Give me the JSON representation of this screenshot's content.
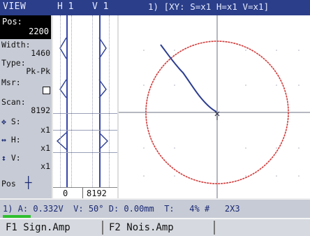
{
  "header": {
    "view": "VIEW",
    "h_label": "H 1",
    "v_label": "V 1",
    "xy_info": "1) [XY: S=x1 H=x1 V=x1]"
  },
  "panel": {
    "pos_label": "Pos:",
    "pos_value": "2200",
    "width_label": "Width:",
    "width_value": "1460",
    "type_label": "Type:",
    "type_value": "Pk-Pk",
    "msr_label": "Msr:",
    "scan_label": "Scan:",
    "scan_value": "8192",
    "s_label": "S:",
    "s_value": "x1",
    "h_label": "H:",
    "h_value": "x1",
    "v_label": "V:",
    "v_value": "x1",
    "pos2_label": "Pos"
  },
  "strip": {
    "start": "0",
    "end": "8192"
  },
  "status": {
    "line": "1) A: 0.332V  V: 50° D: 0.00mm  T:   4% #   2X3"
  },
  "fkeys": {
    "f1": "F1 Sign.Amp",
    "f2": "F2 Nois.Amp"
  },
  "colors": {
    "header_bg": "#2b3e8a",
    "trace_red": "#d23a3a",
    "trace_blue": "#2c3d8f"
  }
}
